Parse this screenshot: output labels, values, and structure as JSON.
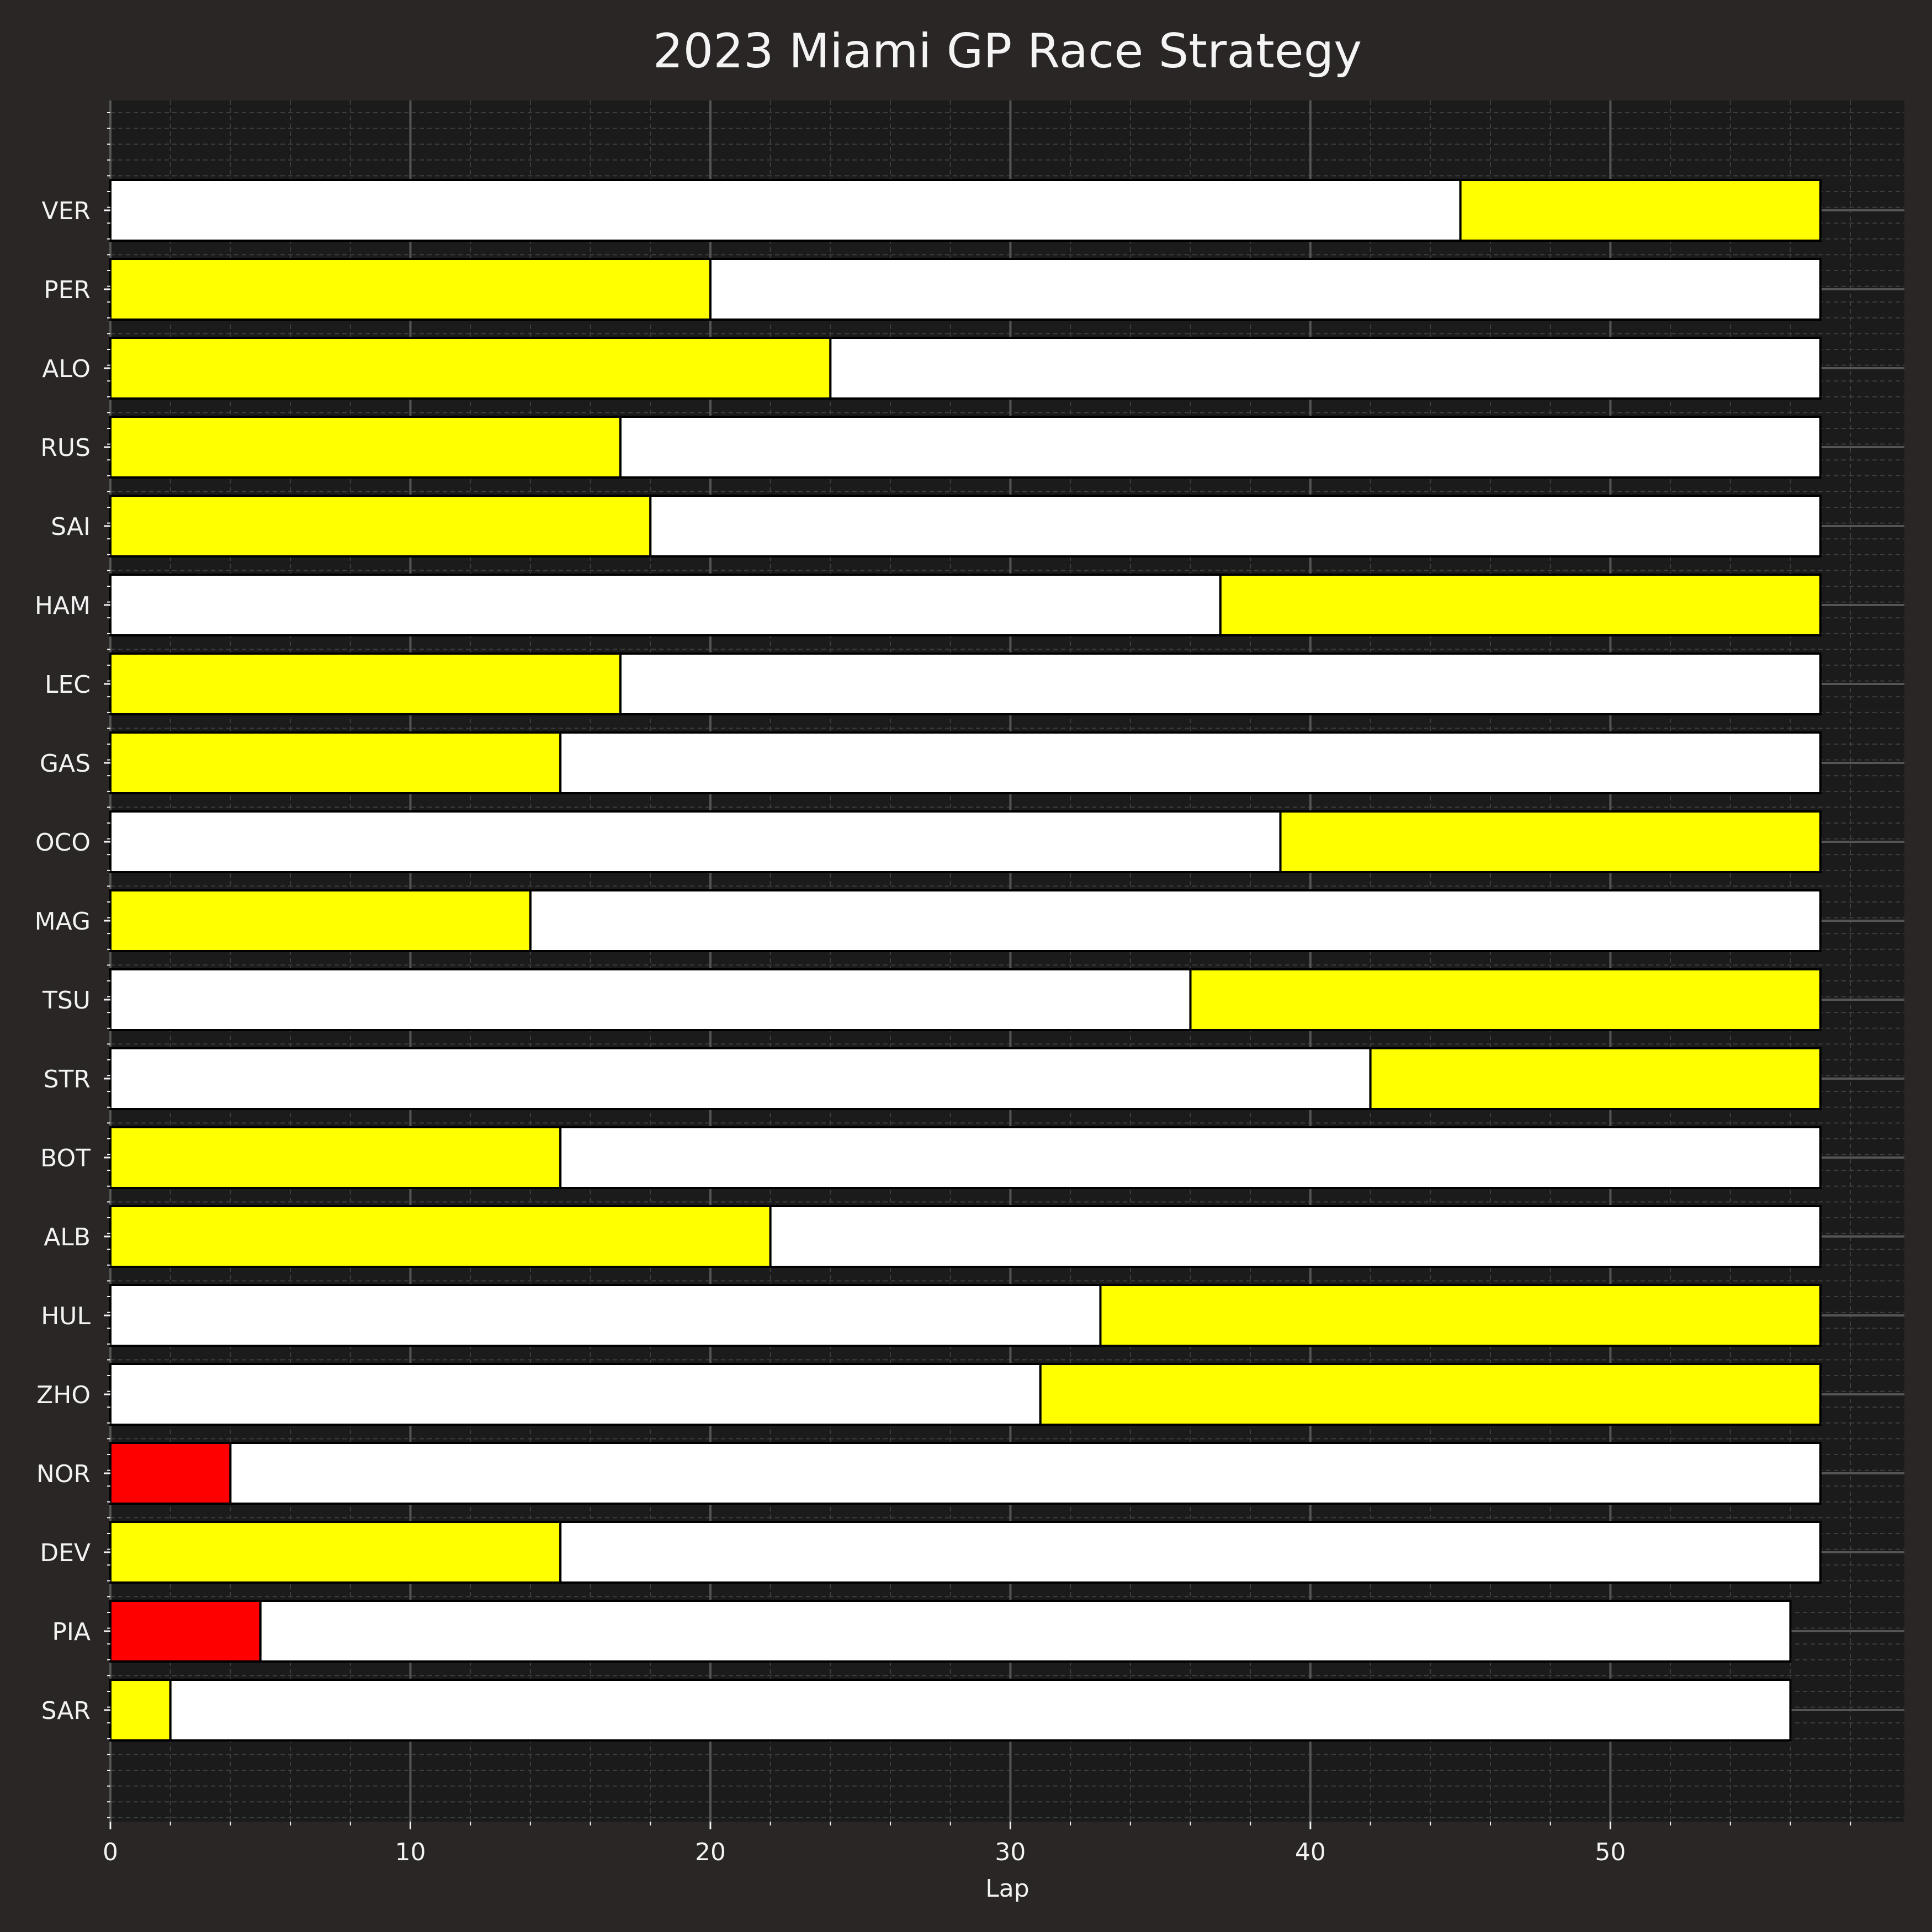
{
  "chart_data": {
    "type": "bar",
    "orientation": "horizontal",
    "stacked": true,
    "title": "2023 Miami GP Race Strategy",
    "xlabel": "Lap",
    "ylabel": "",
    "xlim": [
      0,
      59.8
    ],
    "x_major_ticks": [
      0,
      10,
      20,
      30,
      40,
      50
    ],
    "x_minor_step": 2,
    "grid": true,
    "legend": "none",
    "compound_colors": {
      "SOFT": "#ff0000",
      "MEDIUM": "#ffff00",
      "HARD": "#ffffff"
    },
    "drivers": [
      {
        "driver": "VER",
        "stints": [
          {
            "compound": "HARD",
            "laps": 45
          },
          {
            "compound": "MEDIUM",
            "laps": 12
          }
        ]
      },
      {
        "driver": "PER",
        "stints": [
          {
            "compound": "MEDIUM",
            "laps": 20
          },
          {
            "compound": "HARD",
            "laps": 37
          }
        ]
      },
      {
        "driver": "ALO",
        "stints": [
          {
            "compound": "MEDIUM",
            "laps": 24
          },
          {
            "compound": "HARD",
            "laps": 33
          }
        ]
      },
      {
        "driver": "RUS",
        "stints": [
          {
            "compound": "MEDIUM",
            "laps": 17
          },
          {
            "compound": "HARD",
            "laps": 40
          }
        ]
      },
      {
        "driver": "SAI",
        "stints": [
          {
            "compound": "MEDIUM",
            "laps": 18
          },
          {
            "compound": "HARD",
            "laps": 39
          }
        ]
      },
      {
        "driver": "HAM",
        "stints": [
          {
            "compound": "HARD",
            "laps": 37
          },
          {
            "compound": "MEDIUM",
            "laps": 20
          }
        ]
      },
      {
        "driver": "LEC",
        "stints": [
          {
            "compound": "MEDIUM",
            "laps": 17
          },
          {
            "compound": "HARD",
            "laps": 40
          }
        ]
      },
      {
        "driver": "GAS",
        "stints": [
          {
            "compound": "MEDIUM",
            "laps": 15
          },
          {
            "compound": "HARD",
            "laps": 42
          }
        ]
      },
      {
        "driver": "OCO",
        "stints": [
          {
            "compound": "HARD",
            "laps": 39
          },
          {
            "compound": "MEDIUM",
            "laps": 18
          }
        ]
      },
      {
        "driver": "MAG",
        "stints": [
          {
            "compound": "MEDIUM",
            "laps": 14
          },
          {
            "compound": "HARD",
            "laps": 43
          }
        ]
      },
      {
        "driver": "TSU",
        "stints": [
          {
            "compound": "HARD",
            "laps": 36
          },
          {
            "compound": "MEDIUM",
            "laps": 21
          }
        ]
      },
      {
        "driver": "STR",
        "stints": [
          {
            "compound": "HARD",
            "laps": 42
          },
          {
            "compound": "MEDIUM",
            "laps": 15
          }
        ]
      },
      {
        "driver": "BOT",
        "stints": [
          {
            "compound": "MEDIUM",
            "laps": 15
          },
          {
            "compound": "HARD",
            "laps": 42
          }
        ]
      },
      {
        "driver": "ALB",
        "stints": [
          {
            "compound": "MEDIUM",
            "laps": 22
          },
          {
            "compound": "HARD",
            "laps": 35
          }
        ]
      },
      {
        "driver": "HUL",
        "stints": [
          {
            "compound": "HARD",
            "laps": 33
          },
          {
            "compound": "MEDIUM",
            "laps": 24
          }
        ]
      },
      {
        "driver": "ZHO",
        "stints": [
          {
            "compound": "HARD",
            "laps": 31
          },
          {
            "compound": "MEDIUM",
            "laps": 26
          }
        ]
      },
      {
        "driver": "NOR",
        "stints": [
          {
            "compound": "SOFT",
            "laps": 4
          },
          {
            "compound": "HARD",
            "laps": 53
          }
        ]
      },
      {
        "driver": "DEV",
        "stints": [
          {
            "compound": "MEDIUM",
            "laps": 15
          },
          {
            "compound": "HARD",
            "laps": 42
          }
        ]
      },
      {
        "driver": "PIA",
        "stints": [
          {
            "compound": "SOFT",
            "laps": 5
          },
          {
            "compound": "HARD",
            "laps": 51
          }
        ]
      },
      {
        "driver": "SAR",
        "stints": [
          {
            "compound": "MEDIUM",
            "laps": 2
          },
          {
            "compound": "HARD",
            "laps": 54
          }
        ]
      }
    ]
  }
}
